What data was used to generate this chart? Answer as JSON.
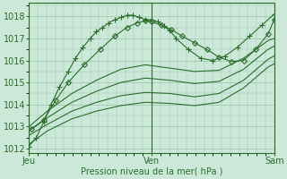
{
  "title": "",
  "xlabel": "Pression niveau de la mer( hPa )",
  "bg_color": "#cce8d8",
  "grid_color": "#a0c8b0",
  "line_color": "#2a6e2a",
  "xlim": [
    0,
    2.0
  ],
  "ylim": [
    1011.8,
    1018.6
  ],
  "yticks": [
    1012,
    1013,
    1014,
    1015,
    1016,
    1017,
    1018
  ],
  "xtick_labels": [
    "Jeu",
    "Ven",
    "Sam"
  ],
  "xtick_positions": [
    0.0,
    1.0,
    2.0
  ],
  "series": [
    {
      "x": [
        0.0,
        0.06,
        0.12,
        0.18,
        0.25,
        0.32,
        0.38,
        0.44,
        0.5,
        0.55,
        0.6,
        0.65,
        0.7,
        0.75,
        0.8,
        0.85,
        0.9,
        0.95,
        1.0,
        1.05,
        1.1,
        1.15,
        1.2,
        1.3,
        1.4,
        1.5,
        1.6,
        1.7,
        1.8,
        1.9,
        2.0
      ],
      "y": [
        1012.1,
        1012.5,
        1013.2,
        1014.0,
        1014.8,
        1015.5,
        1016.1,
        1016.6,
        1017.0,
        1017.3,
        1017.5,
        1017.7,
        1017.85,
        1017.95,
        1018.05,
        1018.05,
        1017.95,
        1017.85,
        1017.85,
        1017.75,
        1017.55,
        1017.35,
        1017.0,
        1016.5,
        1016.1,
        1016.0,
        1016.2,
        1016.6,
        1017.1,
        1017.6,
        1018.1
      ],
      "marker": "+",
      "markersize": 4
    },
    {
      "x": [
        0.02,
        0.12,
        0.22,
        0.32,
        0.45,
        0.58,
        0.7,
        0.8,
        0.88,
        0.95,
        1.0,
        1.08,
        1.16,
        1.25,
        1.35,
        1.45,
        1.55,
        1.65,
        1.75,
        1.85,
        1.95,
        2.0
      ],
      "y": [
        1012.9,
        1013.3,
        1014.2,
        1015.0,
        1015.8,
        1016.5,
        1017.1,
        1017.5,
        1017.7,
        1017.8,
        1017.75,
        1017.6,
        1017.4,
        1017.1,
        1016.8,
        1016.5,
        1016.15,
        1015.95,
        1016.0,
        1016.5,
        1017.2,
        1017.85
      ],
      "marker": "D",
      "markersize": 3
    },
    {
      "x": [
        0.0,
        0.15,
        0.35,
        0.55,
        0.75,
        0.95,
        1.15,
        1.35,
        1.55,
        1.75,
        1.95,
        2.0
      ],
      "y": [
        1013.0,
        1013.7,
        1014.5,
        1015.1,
        1015.6,
        1015.8,
        1015.65,
        1015.5,
        1015.55,
        1016.1,
        1016.9,
        1017.0
      ],
      "marker": "None",
      "markersize": 0
    },
    {
      "x": [
        0.0,
        0.15,
        0.35,
        0.55,
        0.75,
        0.95,
        1.15,
        1.35,
        1.55,
        1.75,
        1.95,
        2.0
      ],
      "y": [
        1012.8,
        1013.4,
        1014.1,
        1014.6,
        1015.0,
        1015.2,
        1015.1,
        1014.95,
        1015.05,
        1015.6,
        1016.5,
        1016.65
      ],
      "marker": "None",
      "markersize": 0
    },
    {
      "x": [
        0.0,
        0.15,
        0.35,
        0.55,
        0.75,
        0.95,
        1.15,
        1.35,
        1.55,
        1.75,
        1.95,
        2.0
      ],
      "y": [
        1012.6,
        1013.1,
        1013.7,
        1014.1,
        1014.4,
        1014.55,
        1014.5,
        1014.35,
        1014.5,
        1015.1,
        1016.05,
        1016.2
      ],
      "marker": "None",
      "markersize": 0
    },
    {
      "x": [
        0.0,
        0.15,
        0.35,
        0.55,
        0.75,
        0.95,
        1.15,
        1.35,
        1.55,
        1.75,
        1.95,
        2.0
      ],
      "y": [
        1012.2,
        1012.8,
        1013.35,
        1013.7,
        1013.95,
        1014.1,
        1014.05,
        1013.95,
        1014.1,
        1014.75,
        1015.7,
        1015.85
      ],
      "marker": "None",
      "markersize": 0
    }
  ]
}
